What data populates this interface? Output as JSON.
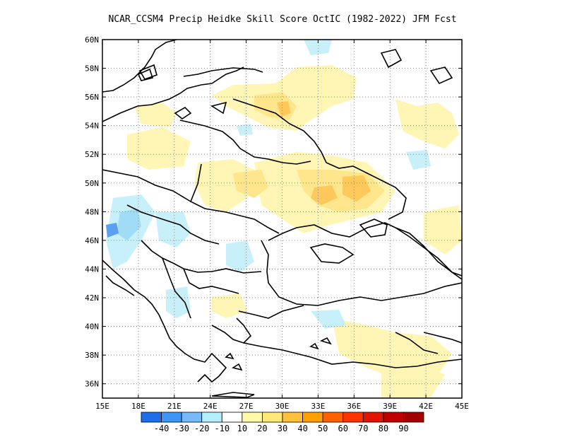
{
  "title": "NCAR_CCSM4 Precip Heidke Skill Score OctIC (1982-2022) JFM Fcst",
  "map": {
    "lon_range": [
      15,
      45
    ],
    "lat_range": [
      35,
      60
    ],
    "x_ticks": [
      {
        "lon": 15,
        "label": "15E"
      },
      {
        "lon": 18,
        "label": "18E"
      },
      {
        "lon": 21,
        "label": "21E"
      },
      {
        "lon": 24,
        "label": "24E"
      },
      {
        "lon": 27,
        "label": "27E"
      },
      {
        "lon": 30,
        "label": "30E"
      },
      {
        "lon": 33,
        "label": "33E"
      },
      {
        "lon": 36,
        "label": "36E"
      },
      {
        "lon": 39,
        "label": "39E"
      },
      {
        "lon": 42,
        "label": "42E"
      },
      {
        "lon": 45,
        "label": "45E"
      }
    ],
    "y_ticks": [
      {
        "lat": 36,
        "label": "36N"
      },
      {
        "lat": 38,
        "label": "38N"
      },
      {
        "lat": 40,
        "label": "40N"
      },
      {
        "lat": 42,
        "label": "42N"
      },
      {
        "lat": 44,
        "label": "44N"
      },
      {
        "lat": 46,
        "label": "46N"
      },
      {
        "lat": 48,
        "label": "48N"
      },
      {
        "lat": 50,
        "label": "50N"
      },
      {
        "lat": 52,
        "label": "52N"
      },
      {
        "lat": 54,
        "label": "54N"
      },
      {
        "lat": 56,
        "label": "56N"
      },
      {
        "lat": 58,
        "label": "58N"
      },
      {
        "lat": 60,
        "label": "60N"
      }
    ]
  },
  "colorbar": {
    "colors": [
      "#1e6eeb",
      "#3c96f5",
      "#78b9fa",
      "#b4f0fa",
      "#ffffff",
      "#fffaaa",
      "#ffe878",
      "#ffc03c",
      "#ffa000",
      "#ff6000",
      "#ff3200",
      "#e11400",
      "#c00000",
      "#a50000"
    ],
    "labels": [
      "-40",
      "-30",
      "-20",
      "-10",
      "10",
      "20",
      "30",
      "40",
      "50",
      "60",
      "70",
      "80",
      "90"
    ]
  },
  "field_colors": {
    "c20": "#fff5b4",
    "c30": "#ffe68c",
    "c40": "#ffc85a",
    "neg10": "#c8f0fa",
    "neg20": "#a0dcf5",
    "neg30": "#5a9ff0"
  }
}
